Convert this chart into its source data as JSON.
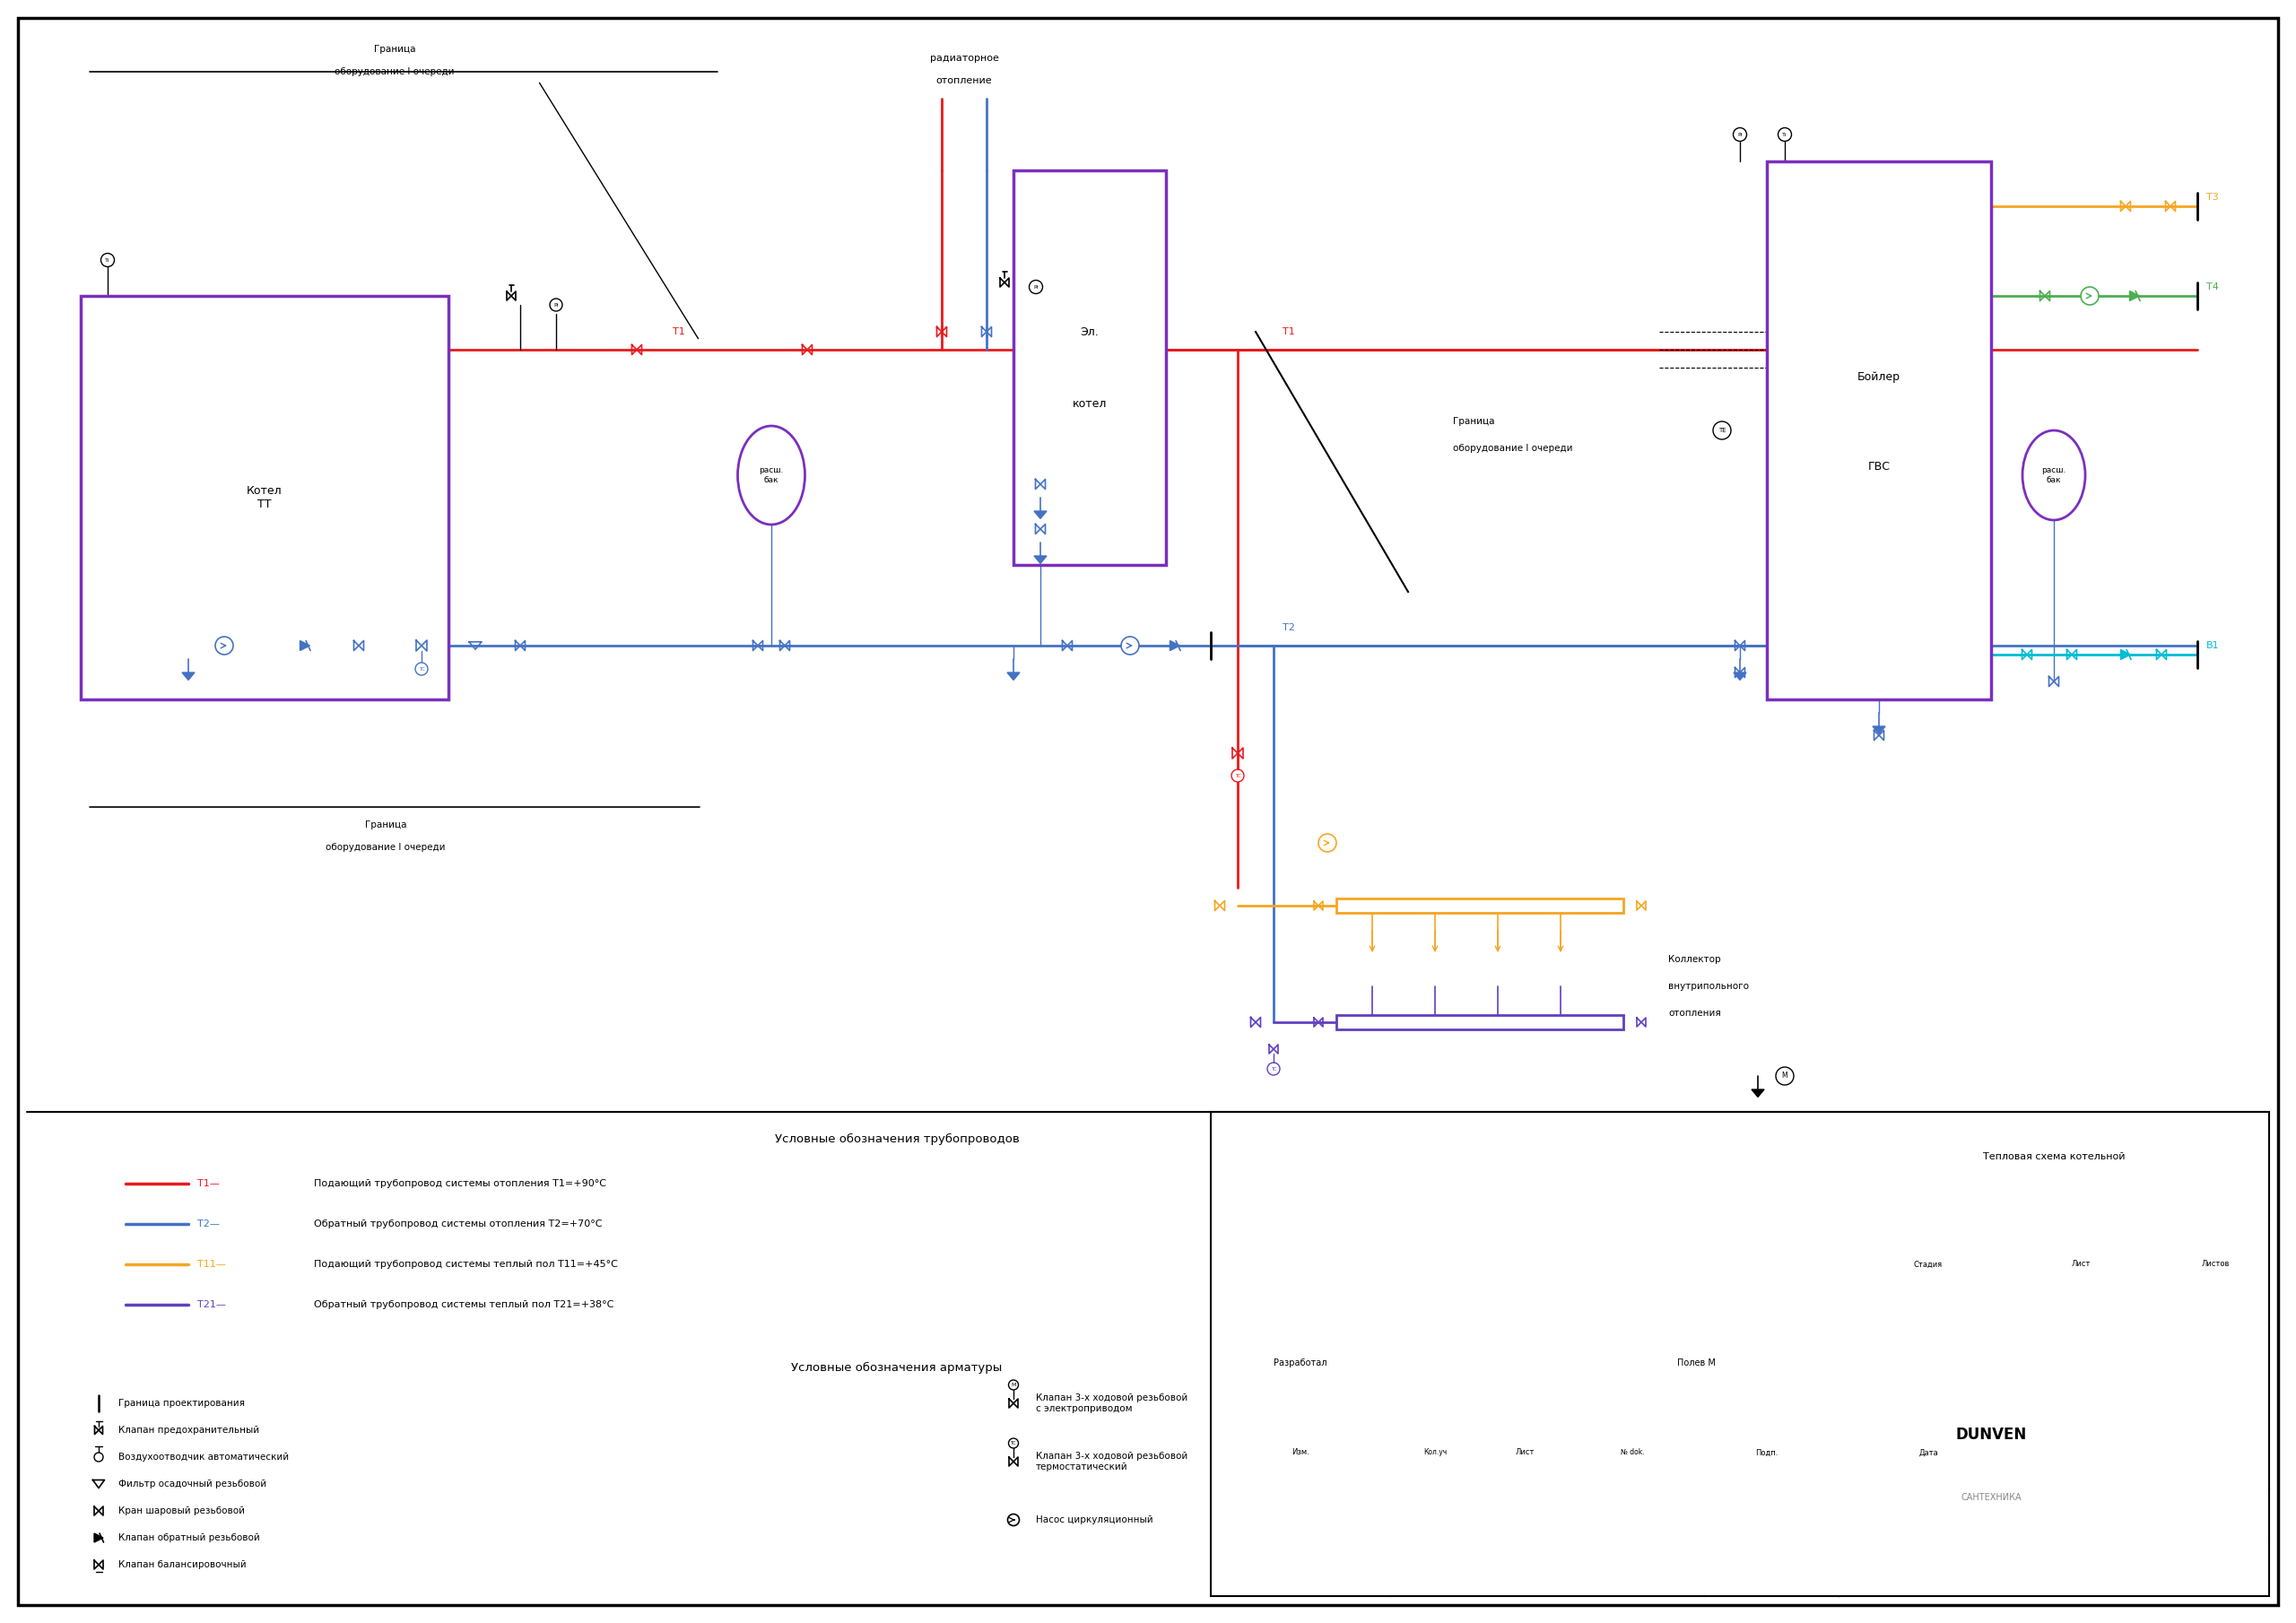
{
  "bg": "#ffffff",
  "black": "#000000",
  "red": "#e8191c",
  "blue": "#4472c4",
  "orange": "#f5a623",
  "purple_pipe": "#6040c0",
  "cyan": "#00bcd4",
  "green": "#4caf50",
  "purple_box": "#7b2fbe",
  "title": "Тепловая схема котельной",
  "developer": "Разработал",
  "developer_name": "Полев М",
  "legend_pipe_title": "Условные обозначения трубопроводов",
  "legend_valve_title": "Условные обозначения арматуры",
  "pipe_labels": [
    "Т1—",
    "Т2—",
    "Т11—",
    "Т21—"
  ],
  "pipe_descs": [
    "Подающий трубопровод системы отопления T1=+90°C",
    "Обратный трубопровод системы отопления T2=+70°C",
    "Подающий трубопровод системы теплый пол T11=+45°C",
    "Обратный трубопровод системы теплый пол T21=+38°C"
  ],
  "valve_left": [
    "Граница проектирования",
    "Клапан предохранительный",
    "Воздухоотводчик автоматический",
    "Фильтр осадочный резьбовой",
    "Кран шаровый резьбовой",
    "Клапан обратный резьбовой",
    "Клапан балансировочный"
  ],
  "valve_right_labels": [
    "Клапан 3-х ходовой резьбовой\nс электроприводом",
    "Клапан 3-х ходовой резьбовой\nтермостатический",
    "Насос циркуляционный"
  ],
  "stamp_title": "Тепловая схема котельной",
  "company": "DUNVEN",
  "company_sub": "САНТЕХНИКА"
}
